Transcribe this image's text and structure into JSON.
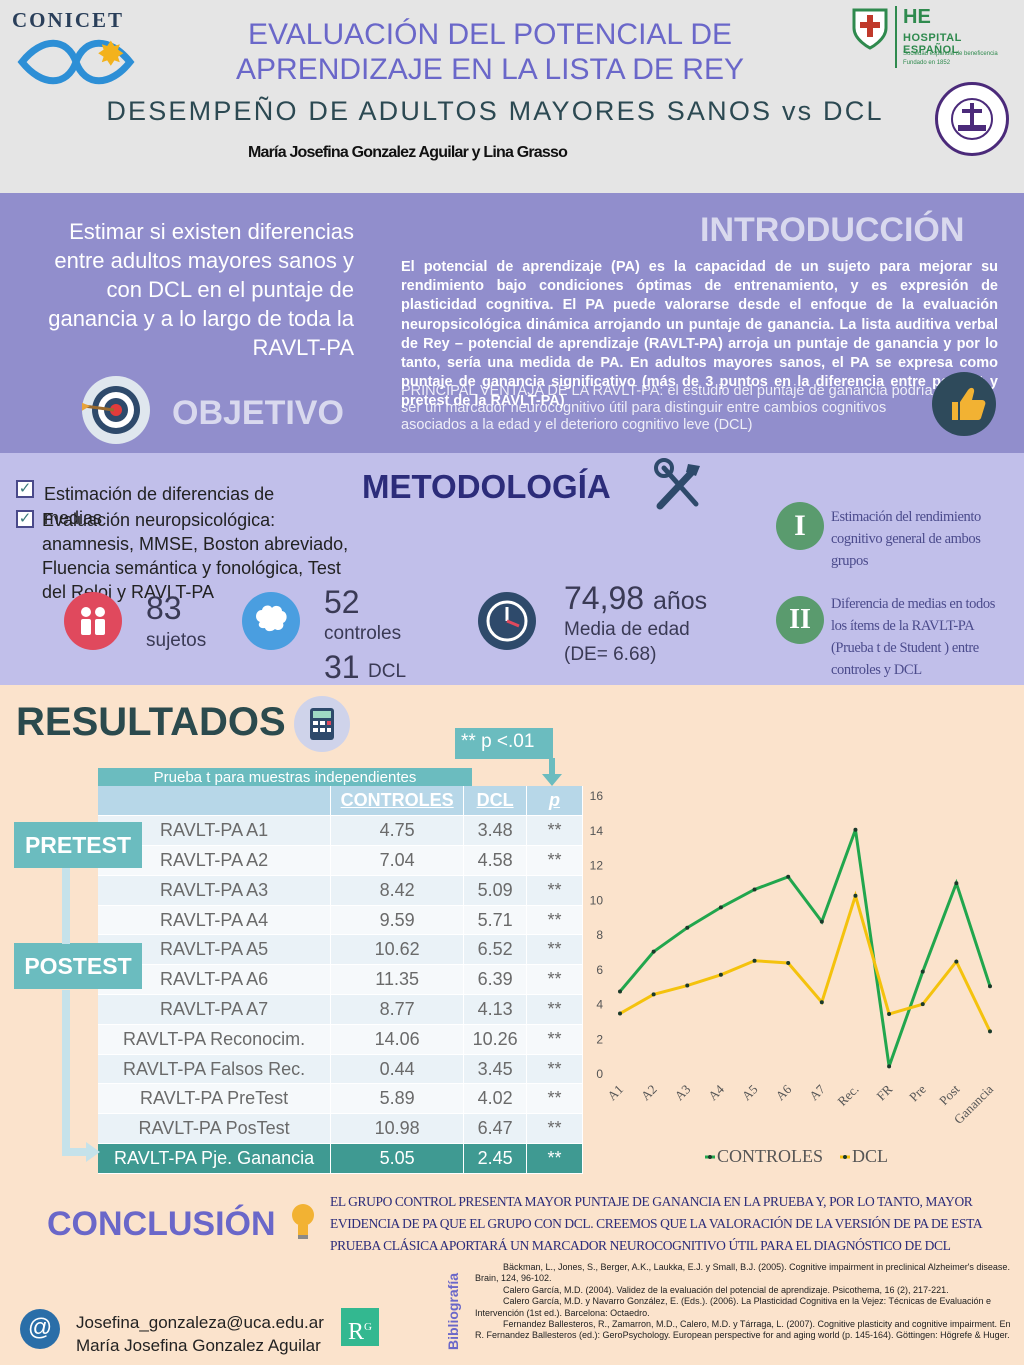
{
  "header": {
    "logo_left": "CONICET",
    "title_line1": "EVALUACIÓN DEL POTENCIAL DE",
    "title_line2": "APRENDIZAJE EN LA LISTA DE REY",
    "subtitle": "DESEMPEÑO DE ADULTOS MAYORES SANOS vs DCL",
    "authors": "María Josefina Gonzalez Aguilar y Lina Grasso",
    "hospital_abbr": "HE",
    "hospital_name": "HOSPITAL ESPAÑOL",
    "hospital_sub1": "Sociedad española de beneficencia",
    "hospital_sub2": "Fundado en 1852",
    "uca_seal_text": "UNIVERSIDAD CATÓLICA ARGENTINA"
  },
  "objective": {
    "text": "Estimar si existen diferencias entre adultos mayores sanos y con DCL en el puntaje de ganancia y a lo largo de toda la RAVLT-PA",
    "title": "OBJETIVO",
    "icon": "target-icon"
  },
  "intro": {
    "title": "INTRODUCCIÓN",
    "text": "El potencial de aprendizaje (PA) es la capacidad de un sujeto para mejorar su rendimiento bajo condiciones óptimas de entrenamiento, y es expresión de plasticidad cognitiva. El PA puede valorarse desde el enfoque de la evaluación neuropsicológica dinámica arrojando un puntaje de ganancia. La lista auditiva verbal de Rey – potencial de aprendizaje (RAVLT-PA) arroja un puntaje de ganancia y por lo tanto, sería una medida de PA. En adultos mayores sanos, el PA se expresa como puntaje de ganancia significativo (más de 3 puntos en la diferencia entre postest y pretest de la RAVLT-PA)",
    "overlap_text": "PRINCIPAL VENTAJA DE LA RAVLT-PA: el estudio del puntaje de ganancia podría ser un marcador neurocognitivo útil para distinguir entre cambios cognitivos asociados a la edad y el deterioro cognitivo leve (DCL)",
    "icon": "thumbs-up-icon"
  },
  "methodology": {
    "title": "METODOLOGÍA",
    "item1": "Estimación de diferencias de medias",
    "item2": "Evaluación neuropsicológica: anamnesis, MMSE, Boston abreviado, Fluencia semántica y fonológica, Test del Reloj y RAVLT-PA",
    "subjects_num": "83",
    "subjects_lbl": "sujetos",
    "controls_num": "52",
    "controls_lbl": "controles",
    "dcl_num": "31",
    "dcl_lbl": "DCL",
    "age_num": "74,98",
    "age_unit": "años",
    "age_lbl": "Media de edad",
    "age_sd": "(DE= 6.68)",
    "step1_numeral": "I",
    "step1": "Estimación del rendimiento cognitivo general de ambos grupos",
    "step2_numeral": "II",
    "step2": "Diferencia de medias en todos los ítems de la RAVLT-PA (Prueba t de Student ) entre controles y DCL"
  },
  "results": {
    "title": "RESULTADOS",
    "p_note": "** p <.01",
    "table_caption": "Prueba t para muestras independientes",
    "col_controls": "CONTROLES",
    "col_dcl": "DCL",
    "col_p": "p",
    "pretest_tag": "PRETEST",
    "postest_tag": "POSTEST",
    "rows": [
      {
        "label": "RAVLT-PA A1",
        "controles": "4.75",
        "dcl": "3.48",
        "p": "**"
      },
      {
        "label": "RAVLT-PA A2",
        "controles": "7.04",
        "dcl": "4.58",
        "p": "**"
      },
      {
        "label": "RAVLT-PA A3",
        "controles": "8.42",
        "dcl": "5.09",
        "p": "**"
      },
      {
        "label": "RAVLT-PA A4",
        "controles": "9.59",
        "dcl": "5.71",
        "p": "**"
      },
      {
        "label": "RAVLT-PA A5",
        "controles": "10.62",
        "dcl": "6.52",
        "p": "**"
      },
      {
        "label": "RAVLT-PA A6",
        "controles": "11.35",
        "dcl": "6.39",
        "p": "**"
      },
      {
        "label": "RAVLT-PA A7",
        "controles": "8.77",
        "dcl": "4.13",
        "p": "**"
      },
      {
        "label": "RAVLT-PA Reconocim.",
        "controles": "14.06",
        "dcl": "10.26",
        "p": "**"
      },
      {
        "label": "RAVLT-PA Falsos Rec.",
        "controles": "0.44",
        "dcl": "3.45",
        "p": "**"
      },
      {
        "label": "RAVLT-PA PreTest",
        "controles": "5.89",
        "dcl": "4.02",
        "p": "**"
      },
      {
        "label": "RAVLT-PA PosTest",
        "controles": "10.98",
        "dcl": "6.47",
        "p": "**"
      },
      {
        "label": "RAVLT-PA Pje. Ganancia",
        "controles": "5.05",
        "dcl": "2.45",
        "p": "**"
      }
    ]
  },
  "chart_data": {
    "type": "line",
    "categories": [
      "A1",
      "A2",
      "A3",
      "A4",
      "A5",
      "A6",
      "A7",
      "Rec.",
      "FR",
      "Pre",
      "Post",
      "Ganancia"
    ],
    "series": [
      {
        "name": "CONTROLES",
        "color": "#21a64d",
        "values": [
          4.75,
          7.04,
          8.42,
          9.59,
          10.62,
          11.35,
          8.77,
          14.06,
          0.44,
          5.89,
          10.98,
          5.05
        ]
      },
      {
        "name": "DCL",
        "color": "#f4c20d",
        "values": [
          3.48,
          4.58,
          5.09,
          5.71,
          6.52,
          6.39,
          4.13,
          10.26,
          3.45,
          4.02,
          6.47,
          2.45
        ]
      }
    ],
    "yticks": [
      "0",
      "2",
      "4",
      "6",
      "8",
      "10",
      "12",
      "14",
      "16"
    ],
    "ylim": [
      0,
      16
    ],
    "grid": false,
    "legend": "bottom"
  },
  "conclusion": {
    "title": "CONCLUSIÓN",
    "text": "EL GRUPO CONTROL PRESENTA MAYOR PUNTAJE DE GANANCIA EN LA PRUEBA Y, POR LO TANTO, MAYOR EVIDENCIA DE PA QUE EL GRUPO CON DCL. CREEMOS QUE LA VALORACIÓN DE LA VERSIÓN DE PA DE ESTA PRUEBA CLÁSICA APORTARÁ UN MARCADOR NEUROCOGNITIVO ÚTIL PARA EL DIAGNÓSTICO DE DCL"
  },
  "bibliography": {
    "label": "Bibliografía",
    "refs": [
      "Bäckman, L., Jones, S., Berger, A.K., Laukka, E.J. y Small, B.J. (2005). Cognitive impairment in preclinical Alzheimer's disease. Brain, 124, 96-102.",
      "Calero García, M.D. (2004). Validez de la evaluación del potencial de aprendizaje. Psicothema, 16 (2), 217-221.",
      "Calero García, M.D. y Navarro González, E. (Eds.). (2006). La Plasticidad Cognitiva en la Vejez: Técnicas de Evaluación e Intervención (1st ed.). Barcelona: Octaedro.",
      "Fernandez Ballesteros, R., Zamarron, M.D., Calero, M.D. y Tárraga, L. (2007). Cognitive plasticity and cognitive impairment. En R. Fernandez Ballesteros (ed.): GeroPsychology. European perspective for and aging world (p. 145-164). Göttingen: Högrefe & Huger."
    ]
  },
  "contact": {
    "email": "Josefina_gonzaleza@uca.edu.ar",
    "name": "María Josefina Gonzalez Aguilar",
    "rg_logo": "R",
    "rg_sup": "G"
  }
}
